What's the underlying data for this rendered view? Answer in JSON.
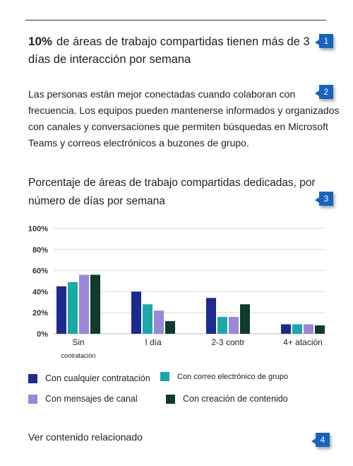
{
  "headline": {
    "percent": "10%",
    "text": "de áreas de trabajo compartidas tienen más de 3 días de interacción por semana"
  },
  "body": {
    "paragraph": "Las personas están mejor conectadas cuando colaboran con frecuencia. Los equipos pueden mantenerse informados y organizados con canales y conversaciones que permiten búsquedas en Microsoft Teams y correos electrónicos a buzones de grupo."
  },
  "callouts": [
    "1",
    "2",
    "3",
    "4"
  ],
  "colors": {
    "series1": "#1a2a8f",
    "series2": "#1aa9a9",
    "series3": "#9b86d8",
    "series4": "#0f3b2e",
    "callout": "#1565c0",
    "gridline": "#dcdcdc"
  },
  "chart_data": {
    "type": "bar",
    "title": "Porcentaje de áreas de trabajo compartidas dedicadas, por número de días por semana",
    "categories": [
      "Sin contratación",
      "I día",
      "2-3 contr",
      "4+ atación"
    ],
    "category_labels": [
      {
        "line1": "Sin",
        "line2": "contratación"
      },
      {
        "line1": "I día",
        "line2": ""
      },
      {
        "line1": "2-3  contr",
        "line2": ""
      },
      {
        "line1": "4+  atación",
        "line2": ""
      }
    ],
    "yticks": [
      "100%",
      "80%",
      "60%",
      "40%",
      "20%",
      "0%"
    ],
    "ylim": [
      0,
      100
    ],
    "xlabel": "",
    "ylabel": "",
    "grid": true,
    "series": [
      {
        "name": "Con cualquier contratación",
        "values": [
          45,
          40,
          34,
          9
        ]
      },
      {
        "name": "Con correo electrónico de grupo",
        "values": [
          49,
          28,
          16,
          9
        ]
      },
      {
        "name": "Con mensajes de canal",
        "values": [
          56,
          22,
          16,
          9
        ]
      },
      {
        "name": "Con creación de contenido",
        "values": [
          56,
          12,
          28,
          8
        ]
      }
    ]
  },
  "related_link": "Ver contenido relacionado"
}
